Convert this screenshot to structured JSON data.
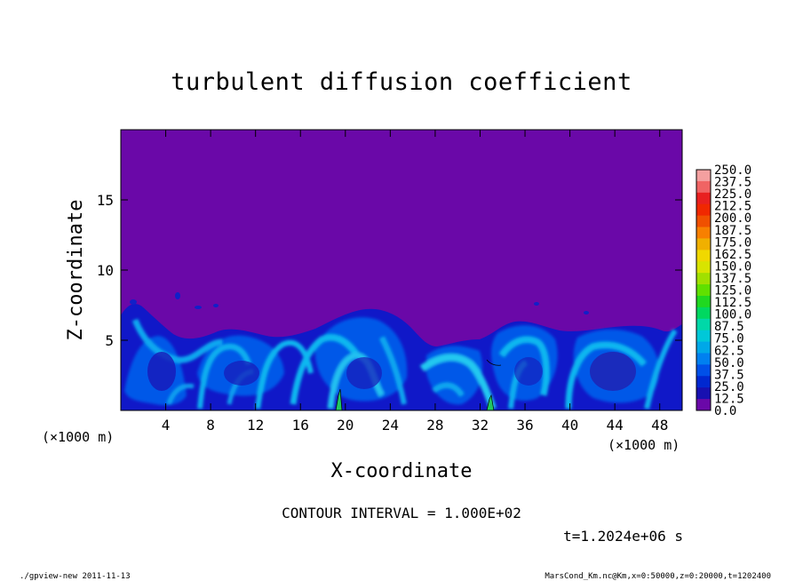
{
  "chart_data": {
    "type": "heatmap",
    "title": "turbulent diffusion coefficient",
    "xlabel": "X-coordinate",
    "ylabel": "Z-coordinate",
    "x_unit_left": "(×1000 m)",
    "x_unit_right": "(×1000 m)",
    "xlim": [
      0,
      50
    ],
    "ylim": [
      0,
      20
    ],
    "x_ticks": [
      4,
      8,
      12,
      16,
      20,
      24,
      28,
      32,
      36,
      40,
      44,
      48
    ],
    "y_ticks": [
      5,
      10,
      15
    ],
    "colorbar": {
      "levels": [
        "250.0",
        "237.5",
        "225.0",
        "212.5",
        "200.0",
        "187.5",
        "175.0",
        "162.5",
        "150.0",
        "137.5",
        "125.0",
        "112.5",
        "100.0",
        "87.5",
        "75.0",
        "62.5",
        "50.0",
        "37.5",
        "25.0",
        "12.5",
        "0.0"
      ],
      "colors": [
        "#f4a0a0",
        "#f06464",
        "#e82020",
        "#f02800",
        "#f05000",
        "#f88000",
        "#f0b000",
        "#f0d800",
        "#d8e400",
        "#a0e000",
        "#60e000",
        "#20d820",
        "#00d860",
        "#00d8a8",
        "#00c8d8",
        "#00a8e8",
        "#0080f0",
        "#0050e8",
        "#0028d0",
        "#1810b0",
        "#6a08a8"
      ]
    },
    "contour_interval": "CONTOUR INTERVAL = 1.000E+02",
    "time_label": "t=1.2024e+06 s"
  },
  "footer": {
    "left": "./gpview-new  2011-11-13",
    "right": "MarsCond_Km.nc@Km,x=0:50000,z=0:20000,t=1202400"
  }
}
